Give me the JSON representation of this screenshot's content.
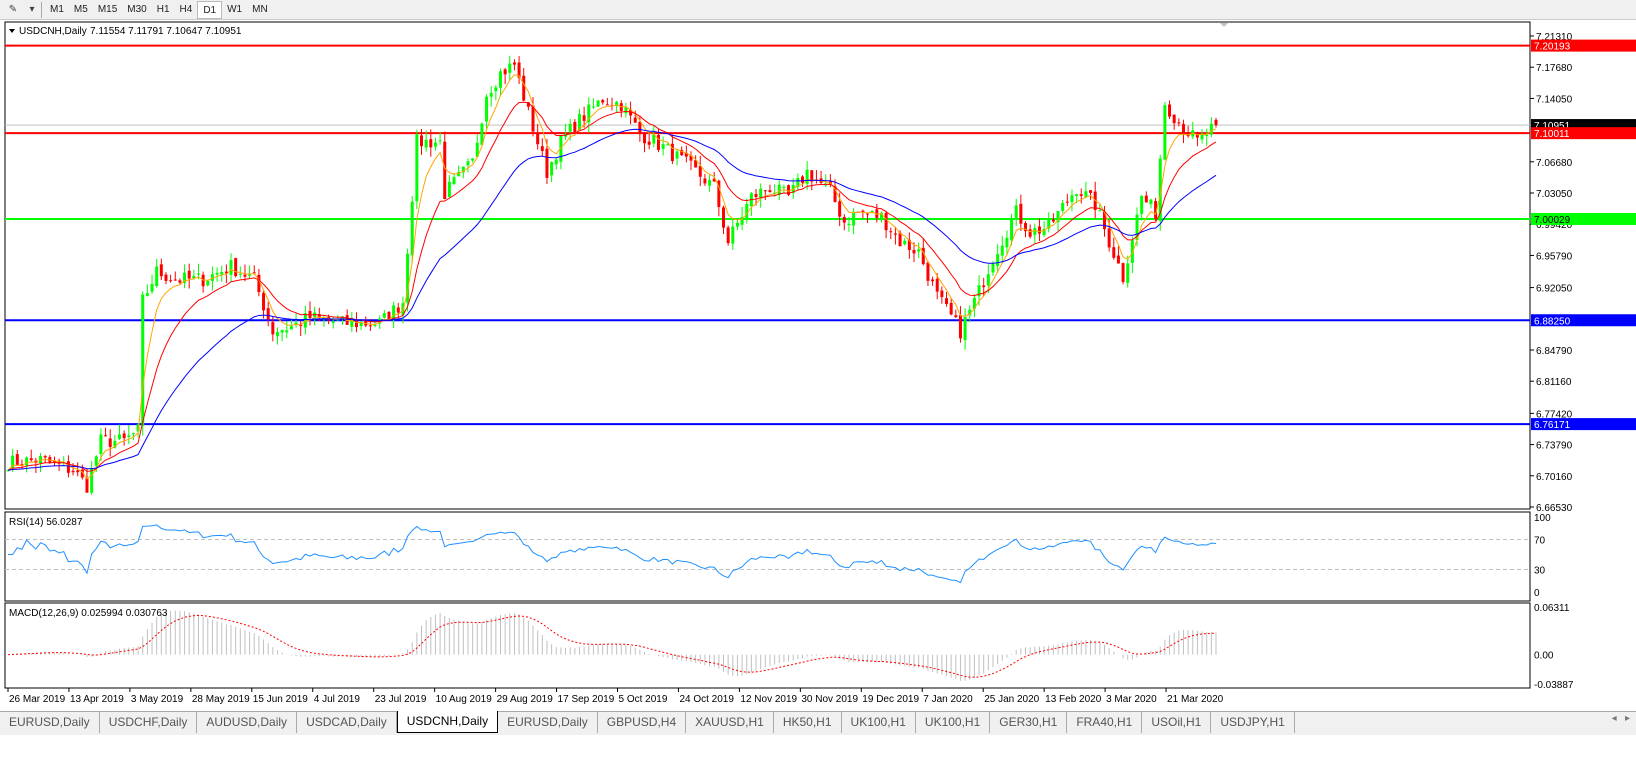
{
  "toolbar": {
    "tool_icons": [
      "line-tools-icon",
      "dropdown-arrow-icon"
    ],
    "timeframes": [
      {
        "label": "M1"
      },
      {
        "label": "M5"
      },
      {
        "label": "M15"
      },
      {
        "label": "M30"
      },
      {
        "label": "H1"
      },
      {
        "label": "H4"
      },
      {
        "label": "D1",
        "active": true
      },
      {
        "label": "W1"
      },
      {
        "label": "MN"
      }
    ]
  },
  "chart_data": [
    {
      "type": "candlestick",
      "title": "USDCNH,Daily",
      "ohlc_label": "7.11554 7.11791 7.10647 7.10951",
      "ylim": [
        6.6653,
        7.2131
      ],
      "y_ticks": [
        "7.21310",
        "7.17680",
        "7.14050",
        "7.10951",
        "7.06680",
        "7.03050",
        "6.99420",
        "6.95790",
        "6.92050",
        "6.84790",
        "6.81160",
        "6.77420",
        "6.73790",
        "6.70160",
        "6.66530"
      ],
      "x_ticks": [
        "26 Mar 2019",
        "13 Apr 2019",
        "3 May 2019",
        "28 May 2019",
        "15 Jun 2019",
        "4 Jul 2019",
        "23 Jul 2019",
        "10 Aug 2019",
        "29 Aug 2019",
        "17 Sep 2019",
        "5 Oct 2019",
        "24 Oct 2019",
        "12 Nov 2019",
        "30 Nov 2019",
        "19 Dec 2019",
        "7 Jan 2020",
        "25 Jan 2020",
        "13 Feb 2020",
        "3 Mar 2020",
        "21 Mar 2020"
      ],
      "bar_count": 261,
      "close_path": [
        [
          0,
          6.717
        ],
        [
          7,
          6.72
        ],
        [
          14,
          6.708
        ],
        [
          17,
          6.69
        ],
        [
          20,
          6.742
        ],
        [
          25,
          6.742
        ],
        [
          28,
          6.754
        ],
        [
          29,
          6.905
        ],
        [
          32,
          6.939
        ],
        [
          36,
          6.93
        ],
        [
          42,
          6.93
        ],
        [
          48,
          6.945
        ],
        [
          53,
          6.93
        ],
        [
          57,
          6.87
        ],
        [
          61,
          6.875
        ],
        [
          65,
          6.886
        ],
        [
          72,
          6.879
        ],
        [
          80,
          6.879
        ],
        [
          85,
          6.904
        ],
        [
          88,
          7.09
        ],
        [
          93,
          7.09
        ],
        [
          94,
          7.03
        ],
        [
          100,
          7.066
        ],
        [
          103,
          7.147
        ],
        [
          106,
          7.17
        ],
        [
          109,
          7.18
        ],
        [
          112,
          7.124
        ],
        [
          116,
          7.055
        ],
        [
          119,
          7.09
        ],
        [
          122,
          7.11
        ],
        [
          128,
          7.14
        ],
        [
          132,
          7.134
        ],
        [
          136,
          7.1
        ],
        [
          141,
          7.084
        ],
        [
          147,
          7.06
        ],
        [
          152,
          7.037
        ],
        [
          155,
          6.974
        ],
        [
          160,
          7.026
        ],
        [
          164,
          7.037
        ],
        [
          168,
          7.026
        ],
        [
          172,
          7.055
        ],
        [
          177,
          7.032
        ],
        [
          180,
          6.997
        ],
        [
          183,
          7.008
        ],
        [
          188,
          7.003
        ],
        [
          192,
          6.974
        ],
        [
          196,
          6.962
        ],
        [
          200,
          6.91
        ],
        [
          205,
          6.87
        ],
        [
          207,
          6.893
        ],
        [
          209,
          6.916
        ],
        [
          212,
          6.956
        ],
        [
          217,
          7.008
        ],
        [
          220,
          6.985
        ],
        [
          224,
          6.991
        ],
        [
          230,
          7.037
        ],
        [
          234,
          7.017
        ],
        [
          237,
          6.974
        ],
        [
          240,
          6.933
        ],
        [
          244,
          7.026
        ],
        [
          247,
          7.008
        ],
        [
          249,
          7.136
        ],
        [
          252,
          7.113
        ],
        [
          256,
          7.09
        ],
        [
          260,
          7.1095
        ]
      ],
      "horizontal_lines": [
        {
          "price": 7.20193,
          "label": "7.20193",
          "color": "#ff0000"
        },
        {
          "price": 7.10011,
          "label": "7.10011",
          "color": "#ff0000"
        },
        {
          "price": 7.00029,
          "label": "7.00029",
          "color": "#00ff00"
        },
        {
          "price": 6.8825,
          "label": "6.88250",
          "color": "#0000ff"
        },
        {
          "price": 6.76171,
          "label": "6.76171",
          "color": "#0000ff"
        }
      ],
      "current_price": {
        "price": 7.10951,
        "label": "7.10951"
      },
      "moving_averages": [
        {
          "color": "#ffa500",
          "period": 5
        },
        {
          "color": "#ff0000",
          "period": 13
        },
        {
          "color": "#0000ff",
          "period": 34
        }
      ],
      "colors": {
        "up": "#00ff00",
        "down": "#ff0000"
      }
    },
    {
      "type": "line",
      "title": "RSI(14) 56.0287",
      "ylim": [
        0,
        100
      ],
      "y_ticks": [
        "100",
        "70",
        "30",
        "0"
      ],
      "levels": [
        70,
        30
      ],
      "color": "#1e90ff"
    },
    {
      "type": "bar",
      "title": "MACD(12,26,9) 0.025994 0.030763",
      "ylim": [
        -0.03887,
        0.06311
      ],
      "y_ticks": [
        "0.06311",
        "0.00",
        "-0.03887"
      ],
      "histogram_color": "#c0c0c0",
      "signal_color": "#ff0000"
    }
  ],
  "tabs": [
    {
      "label": "EURUSD,Daily"
    },
    {
      "label": "USDCHF,Daily"
    },
    {
      "label": "AUDUSD,Daily"
    },
    {
      "label": "USDCAD,Daily"
    },
    {
      "label": "USDCNH,Daily",
      "active": true
    },
    {
      "label": "EURUSD,Daily"
    },
    {
      "label": "GBPUSD,H4"
    },
    {
      "label": "XAUUSD,H1"
    },
    {
      "label": "HK50,H1"
    },
    {
      "label": "UK100,H1"
    },
    {
      "label": "UK100,H1"
    },
    {
      "label": "GER30,H1"
    },
    {
      "label": "FRA40,H1"
    },
    {
      "label": "USOil,H1"
    },
    {
      "label": "USDJPY,H1"
    }
  ],
  "tab_scroll": {
    "left": "◂",
    "right": "▸"
  }
}
